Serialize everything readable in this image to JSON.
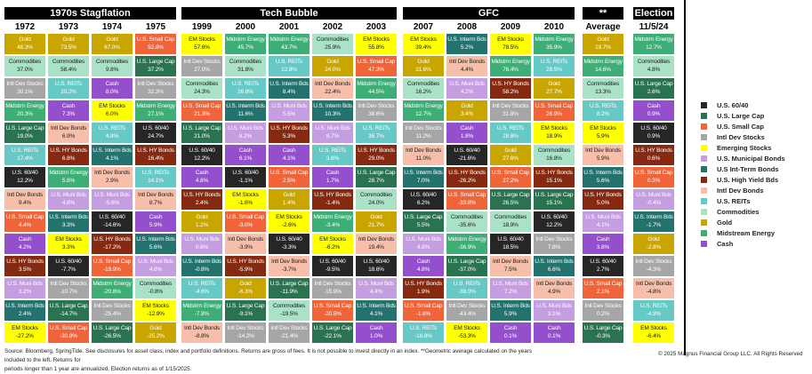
{
  "assets": {
    "s6040": {
      "label": "U.S. 60/40",
      "legend": "U.S. 60/40",
      "color": "#262626",
      "text": "#ffffff"
    },
    "lc": {
      "label": "U.S. Large Cap",
      "legend": "U.S. Large Cap",
      "color": "#2a7350",
      "text": "#ffffff"
    },
    "sc": {
      "label": "U.S. Small Cap",
      "legend": "U.S. Small Cap",
      "color": "#f0643a",
      "text": "#ffffff"
    },
    "ids": {
      "label": "Intl Dev Stocks",
      "legend": "Intl Dev Stocks",
      "color": "#a6a6a6",
      "text": "#ffffff"
    },
    "em": {
      "label": "EM Stocks",
      "legend": "Emerging Stocks",
      "color": "#ffff00",
      "text": "#222222"
    },
    "muni": {
      "label": "U.S. Muni Bds",
      "legend": "U.S. Municipal Bonds",
      "color": "#c49ee0",
      "text": "#ffffff"
    },
    "int": {
      "label": "U.S. Interm Bds",
      "legend": "U.S Int-Term Bonds",
      "color": "#24726e",
      "text": "#ffffff"
    },
    "hy": {
      "label": "U.S. HY Bonds",
      "legend": "U.S. High Yield Bds",
      "color": "#852a10",
      "text": "#ffffff"
    },
    "idb": {
      "label": "Intl Dev Bonds",
      "legend": "Intl Dev Bonds",
      "color": "#f7bfaa",
      "text": "#222222"
    },
    "reit": {
      "label": "U.S. REITs",
      "legend": "U.S. REITs",
      "color": "#66c9c6",
      "text": "#ffffff"
    },
    "com": {
      "label": "Commodities",
      "legend": "Commodities",
      "color": "#a9e2c6",
      "text": "#222222"
    },
    "gold": {
      "label": "Gold",
      "legend": "Gold",
      "color": "#c9a500",
      "text": "#ffffff"
    },
    "mid": {
      "label": "Midstrm Energy",
      "legend": "Midstream Energy",
      "color": "#3dae76",
      "text": "#ffffff"
    },
    "cash": {
      "label": "Cash",
      "legend": "Cash",
      "color": "#9450cc",
      "text": "#ffffff"
    }
  },
  "legend_order": [
    "s6040",
    "lc",
    "sc",
    "ids",
    "em",
    "muni",
    "int",
    "hy",
    "idb",
    "reit",
    "com",
    "gold",
    "mid",
    "cash"
  ],
  "groups": [
    {
      "title": "1970s Stagflation",
      "columns": [
        {
          "year": "1972",
          "cells": [
            [
              "gold",
              "48.3%"
            ],
            [
              "com",
              "37.0%"
            ],
            [
              "ids",
              "30.1%"
            ],
            [
              "mid",
              "20.3%"
            ],
            [
              "lc",
              "19.0%"
            ],
            [
              "reit",
              "17.4%"
            ],
            [
              "s6040",
              "12.2%"
            ],
            [
              "idb",
              "9.4%"
            ],
            [
              "sc",
              "4.4%"
            ],
            [
              "cash",
              "4.2%"
            ],
            [
              "hy",
              "3.5%"
            ],
            [
              "muni",
              "3.2%"
            ],
            [
              "int",
              "2.4%"
            ],
            [
              "em",
              "-27.2%"
            ]
          ]
        },
        {
          "year": "1973",
          "cells": [
            [
              "gold",
              "73.5%"
            ],
            [
              "com",
              "58.4%"
            ],
            [
              "reit",
              "20.2%"
            ],
            [
              "cash",
              "7.3%"
            ],
            [
              "idb",
              "6.9%"
            ],
            [
              "hy",
              "6.8%"
            ],
            [
              "mid",
              "5.8%"
            ],
            [
              "muni",
              "4.8%"
            ],
            [
              "int",
              "3.3%"
            ],
            [
              "em",
              "3.3%"
            ],
            [
              "s6040",
              "-7.7%"
            ],
            [
              "ids",
              "-10.7%"
            ],
            [
              "lc",
              "-14.7%"
            ],
            [
              "sc",
              "-30.9%"
            ]
          ]
        },
        {
          "year": "1974",
          "cells": [
            [
              "gold",
              "67.0%"
            ],
            [
              "com",
              "9.8%"
            ],
            [
              "cash",
              "8.0%"
            ],
            [
              "em",
              "6.0%"
            ],
            [
              "reit",
              "4.8%"
            ],
            [
              "int",
              "4.1%"
            ],
            [
              "idb",
              "2.9%"
            ],
            [
              "muni",
              "-5.6%"
            ],
            [
              "s6040",
              "-14.6%"
            ],
            [
              "hy",
              "-17.2%"
            ],
            [
              "sc",
              "-19.9%"
            ],
            [
              "mid",
              "-20.8%"
            ],
            [
              "ids",
              "-25.4%"
            ],
            [
              "lc",
              "-26.5%"
            ]
          ]
        },
        {
          "year": "1975",
          "cells": [
            [
              "sc",
              "52.8%"
            ],
            [
              "lc",
              "37.2%"
            ],
            [
              "ids",
              "32.3%"
            ],
            [
              "mid",
              "27.1%"
            ],
            [
              "s6040",
              "24.7%"
            ],
            [
              "hy",
              "16.4%"
            ],
            [
              "reit",
              "14.1%"
            ],
            [
              "idb",
              "8.7%"
            ],
            [
              "cash",
              "5.9%"
            ],
            [
              "int",
              "5.6%"
            ],
            [
              "muni",
              "4.6%"
            ],
            [
              "com",
              "-0.8%"
            ],
            [
              "em",
              "-12.9%"
            ],
            [
              "gold",
              "-25.2%"
            ]
          ]
        }
      ]
    },
    {
      "title": "Tech Bubble",
      "columns": [
        {
          "year": "1999",
          "cells": [
            [
              "em",
              "57.6%"
            ],
            [
              "ids",
              "27.0%"
            ],
            [
              "com",
              "24.3%"
            ],
            [
              "sc",
              "21.3%"
            ],
            [
              "lc",
              "21.0%"
            ],
            [
              "s6040",
              "12.2%"
            ],
            [
              "cash",
              "4.8%"
            ],
            [
              "hy",
              "2.4%"
            ],
            [
              "gold",
              "1.2%"
            ],
            [
              "muni",
              "0.6%"
            ],
            [
              "int",
              "-0.8%"
            ],
            [
              "reit",
              "-4.6%"
            ],
            [
              "mid",
              "-7.8%"
            ],
            [
              "idb",
              "-8.8%"
            ]
          ]
        },
        {
          "year": "2000",
          "cells": [
            [
              "mid",
              "45.7%"
            ],
            [
              "com",
              "31.8%"
            ],
            [
              "reit",
              "26.8%"
            ],
            [
              "int",
              "11.6%"
            ],
            [
              "muni",
              "8.2%"
            ],
            [
              "cash",
              "6.1%"
            ],
            [
              "s6040",
              "-1.1%"
            ],
            [
              "em",
              "-1.6%"
            ],
            [
              "sc",
              "-3.0%"
            ],
            [
              "idb",
              "-3.9%"
            ],
            [
              "hy",
              "-5.9%"
            ],
            [
              "gold",
              "-6.3%"
            ],
            [
              "lc",
              "-9.1%"
            ],
            [
              "ids",
              "-14.2%"
            ]
          ]
        },
        {
          "year": "2001",
          "cells": [
            [
              "mid",
              "43.7%"
            ],
            [
              "reit",
              "12.8%"
            ],
            [
              "int",
              "8.4%"
            ],
            [
              "muni",
              "5.5%"
            ],
            [
              "hy",
              "5.3%"
            ],
            [
              "cash",
              "4.1%"
            ],
            [
              "sc",
              "2.5%"
            ],
            [
              "gold",
              "1.4%"
            ],
            [
              "em",
              "-2.6%"
            ],
            [
              "s6040",
              "-3.3%"
            ],
            [
              "idb",
              "-3.7%"
            ],
            [
              "lc",
              "-11.9%"
            ],
            [
              "com",
              "-19.5%"
            ],
            [
              "ids",
              "-21.4%"
            ]
          ]
        },
        {
          "year": "2002",
          "cells": [
            [
              "com",
              "25.9%"
            ],
            [
              "gold",
              "24.0%"
            ],
            [
              "idb",
              "22.4%"
            ],
            [
              "int",
              "10.3%"
            ],
            [
              "muni",
              "8.7%"
            ],
            [
              "reit",
              "3.6%"
            ],
            [
              "cash",
              "1.7%"
            ],
            [
              "hy",
              "-1.4%"
            ],
            [
              "mid",
              "-3.4%"
            ],
            [
              "em",
              "-6.2%"
            ],
            [
              "s6040",
              "-9.5%"
            ],
            [
              "ids",
              "-15.9%"
            ],
            [
              "sc",
              "-20.5%"
            ],
            [
              "lc",
              "-22.1%"
            ]
          ]
        },
        {
          "year": "2003",
          "cells": [
            [
              "em",
              "55.8%"
            ],
            [
              "sc",
              "47.3%"
            ],
            [
              "mid",
              "44.5%"
            ],
            [
              "ids",
              "38.6%"
            ],
            [
              "reit",
              "36.7%"
            ],
            [
              "hy",
              "29.0%"
            ],
            [
              "lc",
              "28.7%"
            ],
            [
              "com",
              "24.0%"
            ],
            [
              "gold",
              "21.7%"
            ],
            [
              "idb",
              "19.4%"
            ],
            [
              "s6040",
              "18.6%"
            ],
            [
              "muni",
              "4.4%"
            ],
            [
              "int",
              "4.1%"
            ],
            [
              "cash",
              "1.0%"
            ]
          ]
        }
      ]
    },
    {
      "title": "GFC",
      "columns": [
        {
          "year": "2007",
          "cells": [
            [
              "em",
              "39.4%"
            ],
            [
              "gold",
              "31.6%"
            ],
            [
              "com",
              "16.2%"
            ],
            [
              "mid",
              "12.7%"
            ],
            [
              "ids",
              "11.2%"
            ],
            [
              "idb",
              "11.0%"
            ],
            [
              "int",
              "7.0%"
            ],
            [
              "s6040",
              "6.2%"
            ],
            [
              "lc",
              "5.5%"
            ],
            [
              "muni",
              "4.8%"
            ],
            [
              "cash",
              "4.8%"
            ],
            [
              "hy",
              "1.9%"
            ],
            [
              "sc",
              "-1.6%"
            ],
            [
              "reit",
              "-16.8%"
            ]
          ]
        },
        {
          "year": "2008",
          "cells": [
            [
              "int",
              "5.2%"
            ],
            [
              "idb",
              "4.4%"
            ],
            [
              "muni",
              "4.2%"
            ],
            [
              "gold",
              "3.4%"
            ],
            [
              "cash",
              "1.8%"
            ],
            [
              "s6040",
              "-21.6%"
            ],
            [
              "hy",
              "-26.2%"
            ],
            [
              "sc",
              "-33.8%"
            ],
            [
              "com",
              "-35.6%"
            ],
            [
              "mid",
              "-36.9%"
            ],
            [
              "lc",
              "-37.0%"
            ],
            [
              "reit",
              "-38.0%"
            ],
            [
              "ids",
              "-43.4%"
            ],
            [
              "em",
              "-53.3%"
            ]
          ]
        },
        {
          "year": "2009",
          "cells": [
            [
              "em",
              "78.5%"
            ],
            [
              "mid",
              "76.4%"
            ],
            [
              "hy",
              "58.2%"
            ],
            [
              "ids",
              "31.8%"
            ],
            [
              "reit",
              "28.6%"
            ],
            [
              "gold",
              "27.6%"
            ],
            [
              "sc",
              "27.2%"
            ],
            [
              "lc",
              "26.5%"
            ],
            [
              "com",
              "18.9%"
            ],
            [
              "s6040",
              "18.5%"
            ],
            [
              "idb",
              "7.5%"
            ],
            [
              "muni",
              "7.2%"
            ],
            [
              "int",
              "5.9%"
            ],
            [
              "cash",
              "0.1%"
            ]
          ]
        },
        {
          "year": "2010",
          "cells": [
            [
              "mid",
              "35.9%"
            ],
            [
              "reit",
              "28.5%"
            ],
            [
              "gold",
              "27.7%"
            ],
            [
              "sc",
              "26.9%"
            ],
            [
              "em",
              "18.9%"
            ],
            [
              "com",
              "16.8%"
            ],
            [
              "hy",
              "15.1%"
            ],
            [
              "lc",
              "15.1%"
            ],
            [
              "s6040",
              "12.2%"
            ],
            [
              "ids",
              "7.8%"
            ],
            [
              "int",
              "6.6%"
            ],
            [
              "idb",
              "4.9%"
            ],
            [
              "muni",
              "3.1%"
            ],
            [
              "cash",
              "0.1%"
            ]
          ]
        }
      ]
    },
    {
      "title": "**",
      "columns": [
        {
          "year": "Average",
          "cells": [
            [
              "gold",
              "19.7%"
            ],
            [
              "mid",
              "14.6%"
            ],
            [
              "com",
              "13.3%"
            ],
            [
              "reit",
              "8.2%"
            ],
            [
              "em",
              "5.9%"
            ],
            [
              "idb",
              "5.9%"
            ],
            [
              "int",
              "5.6%"
            ],
            [
              "hy",
              "5.0%"
            ],
            [
              "muni",
              "4.1%"
            ],
            [
              "cash",
              "3.8%"
            ],
            [
              "s6040",
              "2.7%"
            ],
            [
              "sc",
              "2.1%"
            ],
            [
              "ids",
              "0.2%"
            ],
            [
              "lc",
              "-0.3%"
            ]
          ]
        }
      ]
    },
    {
      "title": "Election",
      "columns": [
        {
          "year": "11/5/24",
          "cells": [
            [
              "mid",
              "12.7%"
            ],
            [
              "com",
              "4.8%"
            ],
            [
              "lc",
              "2.6%"
            ],
            [
              "cash",
              "0.9%"
            ],
            [
              "s6040",
              "0.9%"
            ],
            [
              "hy",
              "0.6%"
            ],
            [
              "sc",
              "0.3%"
            ],
            [
              "muni",
              "-0.4%"
            ],
            [
              "int",
              "-1.7%"
            ],
            [
              "gold",
              "-2.8%"
            ],
            [
              "ids",
              "-4.3%"
            ],
            [
              "idb",
              "-4.8%"
            ],
            [
              "reit",
              "-4.9%"
            ],
            [
              "em",
              "-6.4%"
            ]
          ]
        }
      ]
    }
  ],
  "footer": {
    "source_line1": "Source: Bloomberg, SpringTide. See disclosures for asset class, index and portfolio definitions. Returns are gross of fees. It is not possible to invest directly in an index. **Geometric average calculated on the years included to the left. Returns for",
    "source_line2": "periods longer than 1 year are annualized. Election returns as of 1/15/2025.",
    "copyright": "© 2025 Magnus Financial Group LLC. All Rights Reserved"
  }
}
